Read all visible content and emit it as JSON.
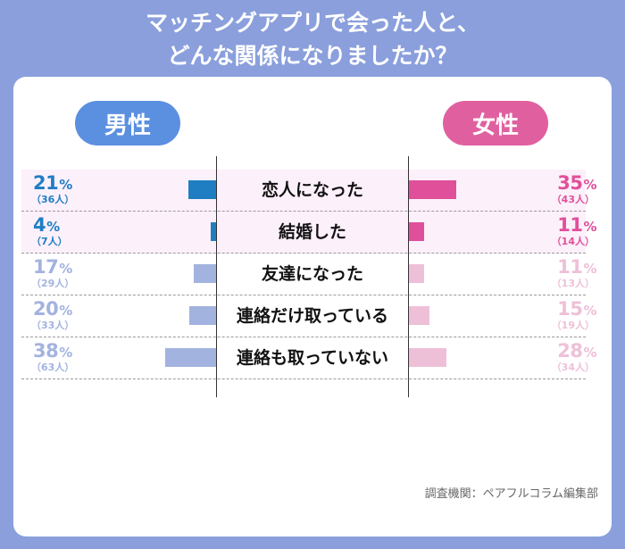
{
  "title": {
    "line1": "マッチングアプリで会った人と、",
    "line2": "どんな関係になりましたか？"
  },
  "legend": {
    "male": "男性",
    "female": "女性"
  },
  "source": "調査機関：ペアフルコラム編集部",
  "colors": {
    "background": "#8a9fdc",
    "male_pill": "#5b8fe0",
    "female_pill": "#e0609f",
    "male_strong": "#1f7ec2",
    "male_soft": "#a3b3df",
    "female_strong": "#e0509a",
    "female_soft": "#eec0d8",
    "highlight_row": "#fcf0fb"
  },
  "chart_data": {
    "type": "bar",
    "orientation": "horizontal-butterfly",
    "categories": [
      "恋人になった",
      "結婚した",
      "友達になった",
      "連絡だけ取っている",
      "連絡も取っていない"
    ],
    "series": [
      {
        "name": "男性",
        "values": [
          21,
          4,
          17,
          20,
          38
        ],
        "counts": [
          "（36人）",
          "（7人）",
          "（29人）",
          "（33人）",
          "（63人）"
        ]
      },
      {
        "name": "女性",
        "values": [
          35,
          11,
          11,
          15,
          28
        ],
        "counts": [
          "（43人）",
          "（14人）",
          "（13人）",
          "（19人）",
          "（34人）"
        ]
      }
    ],
    "unit": "%",
    "highlighted_categories": [
      0,
      1
    ]
  }
}
